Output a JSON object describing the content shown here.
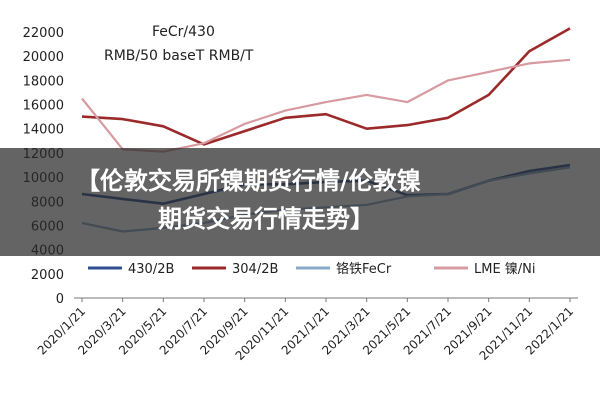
{
  "colors": {
    "s430": "#2f4f8f",
    "s304": "#9b2a2a",
    "fecr": "#8aa9c8",
    "ni": "#d79aa0"
  },
  "chart_data": {
    "type": "line",
    "annotation": [
      "FeCr/430",
      "RMB/50 baseT RMB/T"
    ],
    "x": [
      "2020/1/21",
      "2020/3/21",
      "2020/5/21",
      "2020/7/21",
      "2020/9/21",
      "2020/11/21",
      "2021/1/21",
      "2021/3/21",
      "2021/5/21",
      "2021/7/21",
      "2021/9/21",
      "2021/11/21",
      "2022/1/21"
    ],
    "ylim": [
      0,
      22000
    ],
    "yticks": [
      0,
      2000,
      4000,
      6000,
      8000,
      10000,
      12000,
      14000,
      16000,
      18000,
      20000,
      22000
    ],
    "legend_position": "bottom",
    "series": [
      {
        "name": "430/2B",
        "values": [
          8600,
          8200,
          7800,
          8600,
          9400,
          9400,
          9600,
          9700,
          8500,
          8600,
          9700,
          10500,
          11000
        ]
      },
      {
        "name": "304/2B",
        "values": [
          15000,
          14800,
          14200,
          12700,
          13800,
          14900,
          15200,
          14000,
          14300,
          14900,
          16800,
          20400,
          22300
        ]
      },
      {
        "name": "铬铁FeCr",
        "values": [
          6200,
          5500,
          5800,
          6200,
          6900,
          7300,
          7500,
          7700,
          8400,
          8600,
          9700,
          10300,
          10800
        ]
      },
      {
        "name": "LME 镍/Ni",
        "values": [
          16500,
          12300,
          12100,
          12800,
          14400,
          15500,
          16200,
          16800,
          16200,
          18000,
          18700,
          19400,
          19700
        ]
      }
    ]
  },
  "overlay": {
    "line1": "【伦敦交易所镍期货行情/伦敦镍",
    "line2": "期货交易行情走势】"
  }
}
